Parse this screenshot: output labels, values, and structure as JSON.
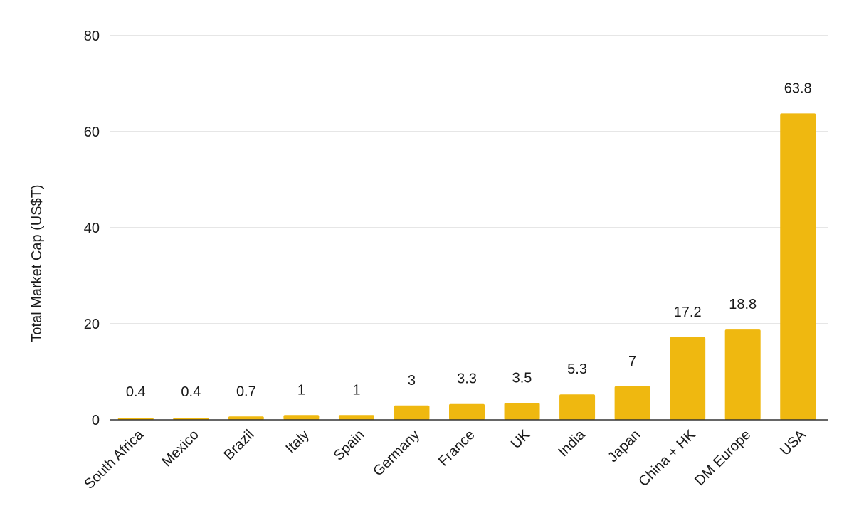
{
  "chart_data": {
    "type": "bar",
    "title": "",
    "xlabel": "",
    "ylabel": "Total Market Cap (US$T)",
    "ylim": [
      0,
      80
    ],
    "yticks": [
      0,
      20,
      40,
      60,
      80
    ],
    "grid": true,
    "bar_color": "#EFB810",
    "categories": [
      "South Africa",
      "Mexico",
      "Brazil",
      "Italy",
      "Spain",
      "Germany",
      "France",
      "UK",
      "India",
      "Japan",
      "China + HK",
      "DM Europe",
      "USA"
    ],
    "values": [
      0.4,
      0.4,
      0.7,
      1,
      1,
      3,
      3.3,
      3.5,
      5.3,
      7,
      17.2,
      18.8,
      63.8
    ],
    "data_labels": [
      "0.4",
      "0.4",
      "0.7",
      "1",
      "1",
      "3",
      "3.3",
      "3.5",
      "5.3",
      "7",
      "17.2",
      "18.8",
      "63.8"
    ]
  }
}
